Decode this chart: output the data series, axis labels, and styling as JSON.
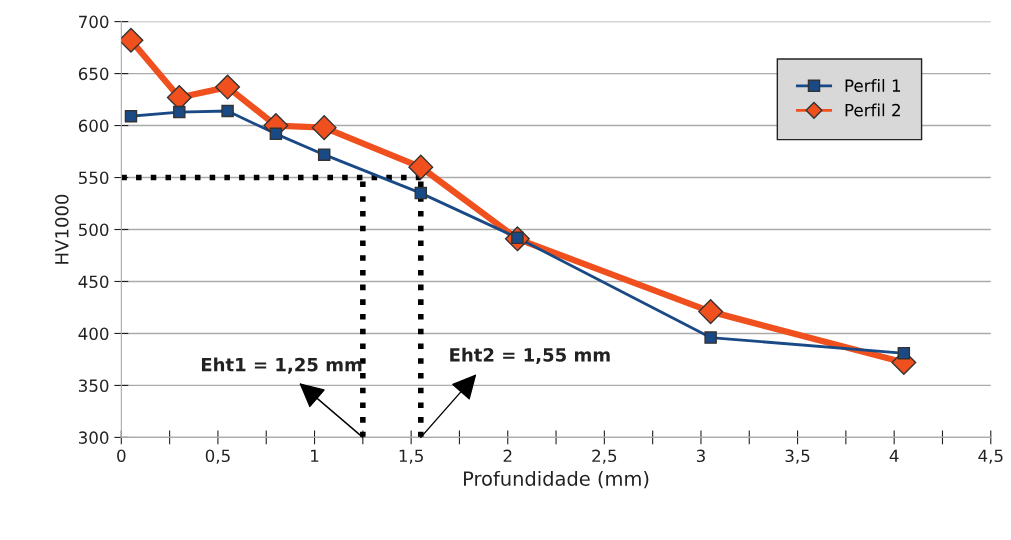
{
  "chart_data": {
    "type": "line",
    "xlabel": "Profundidade (mm)",
    "ylabel": "HV1000",
    "x": [
      0.05,
      0.3,
      0.55,
      0.8,
      1.05,
      1.55,
      2.05,
      3.05,
      4.05
    ],
    "series": [
      {
        "name": "Perfil 1",
        "color": "#1a4a86",
        "marker": "square",
        "values": [
          609,
          613,
          614,
          592,
          572,
          535,
          492,
          396,
          381
        ]
      },
      {
        "name": "Perfil 2",
        "color": "#f0501e",
        "marker": "diamond",
        "values": [
          682,
          627,
          637,
          600,
          598,
          560,
          491,
          421,
          372
        ]
      }
    ],
    "xlim": [
      0,
      4.5
    ],
    "ylim": [
      300,
      700
    ],
    "xticks": [
      {
        "value": 0,
        "label": "0"
      },
      {
        "value": 0.25,
        "label": null
      },
      {
        "value": 0.5,
        "label": "0,5"
      },
      {
        "value": 0.75,
        "label": null
      },
      {
        "value": 1,
        "label": "1"
      },
      {
        "value": 1.25,
        "label": null
      },
      {
        "value": 1.5,
        "label": "1,5"
      },
      {
        "value": 1.75,
        "label": null
      },
      {
        "value": 2,
        "label": "2"
      },
      {
        "value": 2.25,
        "label": null
      },
      {
        "value": 2.5,
        "label": "2,5"
      },
      {
        "value": 2.75,
        "label": null
      },
      {
        "value": 3,
        "label": "3"
      },
      {
        "value": 3.25,
        "label": null
      },
      {
        "value": 3.5,
        "label": "3,5"
      },
      {
        "value": 3.75,
        "label": null
      },
      {
        "value": 4,
        "label": "4"
      },
      {
        "value": 4.25,
        "label": null
      },
      {
        "value": 4.5,
        "label": "4,5"
      }
    ],
    "yticks": [
      300,
      350,
      400,
      450,
      500,
      550,
      600,
      650,
      700
    ],
    "grid": "y",
    "legend": "top right",
    "line_style": "solid",
    "ref_lines": [
      {
        "axis": "y",
        "value": 550,
        "line_style": "dotted",
        "color": "#000000"
      },
      {
        "axis": "x",
        "value": 1.25,
        "line_style": "dotted",
        "color": "#000000"
      },
      {
        "axis": "x",
        "value": 1.55,
        "line_style": "dotted",
        "color": "#000000"
      }
    ],
    "annotations": [
      {
        "text": "Eht1 = 1,25 mm",
        "x": 1.25,
        "y": 300
      },
      {
        "text": "Eht2 = 1,55 mm",
        "x": 1.55,
        "y": 300
      }
    ]
  }
}
